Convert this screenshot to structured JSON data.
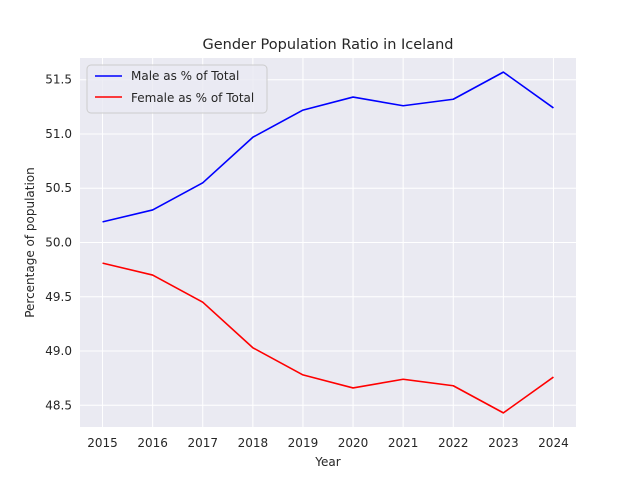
{
  "chart_data": {
    "type": "line",
    "title": "Gender Population Ratio in Iceland",
    "xlabel": "Year",
    "ylabel": "Percentage of population",
    "x": [
      2015,
      2016,
      2017,
      2018,
      2019,
      2020,
      2021,
      2022,
      2023,
      2024
    ],
    "x_tick_labels": [
      "2015",
      "2016",
      "2017",
      "2018",
      "2019",
      "2020",
      "2021",
      "2022",
      "2023",
      "2024"
    ],
    "y_ticks": [
      48.5,
      49.0,
      49.5,
      50.0,
      50.5,
      51.0,
      51.5
    ],
    "y_tick_labels": [
      "48.5",
      "49.0",
      "49.5",
      "50.0",
      "50.5",
      "51.0",
      "51.5"
    ],
    "xlim": [
      2014.55,
      2024.45
    ],
    "ylim": [
      48.3,
      51.7
    ],
    "grid": true,
    "legend_position": "top-left",
    "series": [
      {
        "name": "Male as % of Total",
        "color": "#0000ff",
        "values": [
          50.19,
          50.3,
          50.55,
          50.97,
          51.22,
          51.34,
          51.26,
          51.32,
          51.57,
          51.24
        ]
      },
      {
        "name": "Female as % of Total",
        "color": "#ff0000",
        "values": [
          49.81,
          49.7,
          49.45,
          49.03,
          48.78,
          48.66,
          48.74,
          48.68,
          48.43,
          48.76
        ]
      }
    ]
  },
  "colors": {
    "plot_background": "#eaeaf2",
    "grid": "#ffffff",
    "text": "#262626"
  }
}
